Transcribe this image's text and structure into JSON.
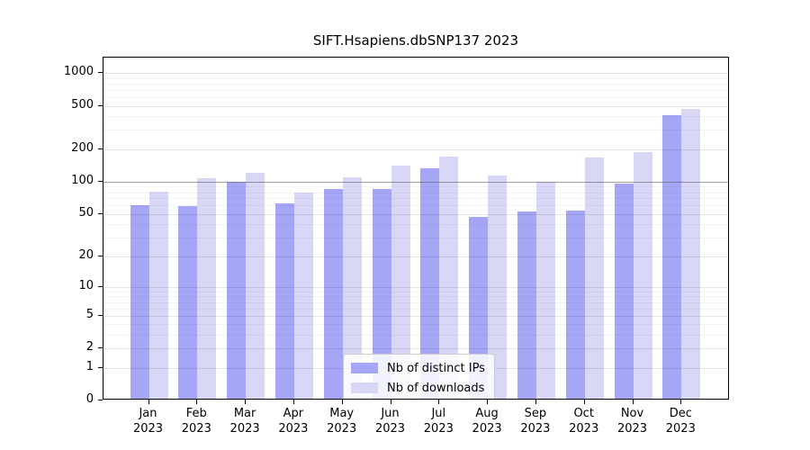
{
  "chart_data": {
    "type": "bar",
    "title": "SIFT.Hsapiens.dbSNP137 2023",
    "categories": [
      "Jan 2023",
      "Feb 2023",
      "Mar 2023",
      "Apr 2023",
      "May 2023",
      "Jun 2023",
      "Jul 2023",
      "Aug 2023",
      "Sep 2023",
      "Oct 2023",
      "Nov 2023",
      "Dec 2023"
    ],
    "series": [
      {
        "name": "Nb of distinct IPs",
        "color": "#a6a6f6",
        "values": [
          58,
          57,
          96,
          61,
          82,
          83,
          127,
          45,
          51,
          52,
          92,
          395
        ]
      },
      {
        "name": "Nb of downloads",
        "color": "#d8d8f6",
        "values": [
          78,
          104,
          117,
          77,
          105,
          136,
          164,
          110,
          97,
          160,
          179,
          455
        ]
      }
    ],
    "xlabel": "",
    "ylabel": "",
    "yscale": "log1p",
    "yticks": [
      0,
      1,
      2,
      5,
      10,
      20,
      50,
      100,
      200,
      500,
      1000
    ],
    "ylim": [
      0,
      1400
    ],
    "grid": true,
    "emphasized_gridline": 100,
    "legend_position": "bottom-center"
  }
}
